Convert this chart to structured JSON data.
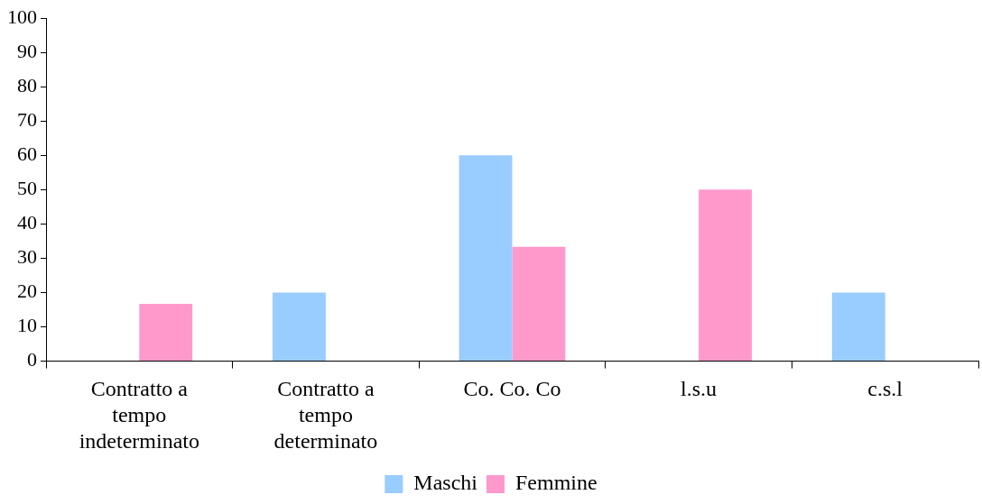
{
  "chart_data": {
    "type": "bar",
    "categories": [
      "Contratto a tempo indeterminato",
      "Contratto a tempo determinato",
      "Co. Co. Co",
      "l.s.u",
      "c.s.l"
    ],
    "series": [
      {
        "name": "Maschi",
        "color": "#99ccff",
        "values": [
          0,
          20,
          60,
          0,
          20
        ]
      },
      {
        "name": "Femmine",
        "color": "#ff99cc",
        "values": [
          16.7,
          0,
          33.3,
          50,
          0
        ]
      }
    ],
    "ylim": [
      0,
      100
    ],
    "yticks": [
      0,
      10,
      20,
      30,
      40,
      50,
      60,
      70,
      80,
      90,
      100
    ],
    "grid": false,
    "legend": "bottom"
  }
}
